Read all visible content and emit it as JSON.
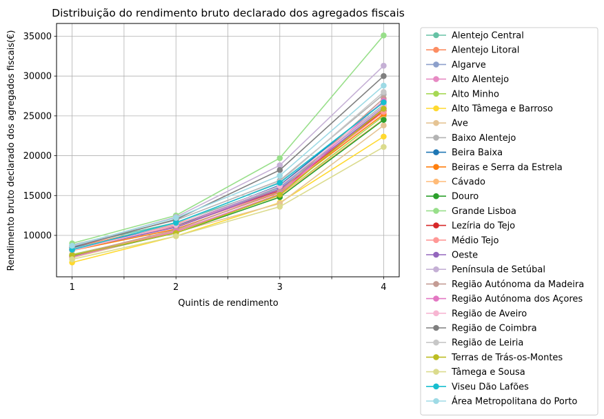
{
  "chart_data": {
    "type": "line",
    "title": "Distribuição do rendimento bruto declarado dos agregados fiscais",
    "xlabel": "Quintis de rendimento",
    "ylabel": "Rendimento bruto declarado dos agregados fiscais(€)",
    "x": [
      1,
      2,
      3,
      4
    ],
    "x_ticks": [
      "1",
      "2",
      "3",
      "4"
    ],
    "xlim": [
      0.85,
      4.15
    ],
    "ylim": [
      4800,
      36600
    ],
    "y_ticks": [
      10000,
      15000,
      20000,
      25000,
      30000,
      35000
    ],
    "grid": true,
    "legend_position": "outside-right",
    "series": [
      {
        "name": "Alentejo Central",
        "color": "#66c2a5",
        "values": [
          8700,
          11600,
          16100,
          26400
        ]
      },
      {
        "name": "Alentejo Litoral",
        "color": "#fc8d62",
        "values": [
          8500,
          11400,
          15800,
          25700
        ]
      },
      {
        "name": "Algarve",
        "color": "#8da0cb",
        "values": [
          8300,
          11200,
          16000,
          26200
        ]
      },
      {
        "name": "Alto Alentejo",
        "color": "#e78ac3",
        "values": [
          8200,
          11300,
          15700,
          26000
        ]
      },
      {
        "name": "Alto Minho",
        "color": "#a6d854",
        "values": [
          7600,
          10500,
          15000,
          25000
        ]
      },
      {
        "name": "Alto Tâmega e Barroso",
        "color": "#ffd92f",
        "values": [
          6600,
          9900,
          14100,
          22400
        ]
      },
      {
        "name": "Ave",
        "color": "#e5c494",
        "values": [
          7200,
          10400,
          14000,
          23800
        ]
      },
      {
        "name": "Baixo Alentejo",
        "color": "#b3b3b3",
        "values": [
          8800,
          11900,
          16900,
          27700
        ]
      },
      {
        "name": "Beira Baixa",
        "color": "#1f77b4",
        "values": [
          8400,
          11200,
          16300,
          26800
        ]
      },
      {
        "name": "Beiras e Serra da Estrela",
        "color": "#ff7f0e",
        "values": [
          8100,
          10800,
          15400,
          25200
        ]
      },
      {
        "name": "Cávado",
        "color": "#ffbb78",
        "values": [
          7400,
          10600,
          15000,
          24600
        ]
      },
      {
        "name": "Douro",
        "color": "#2ca02c",
        "values": [
          7400,
          10300,
          14800,
          24500
        ]
      },
      {
        "name": "Grande Lisboa",
        "color": "#98df8a",
        "values": [
          9000,
          12500,
          19700,
          35100
        ]
      },
      {
        "name": "Lezíria do Tejo",
        "color": "#d62728",
        "values": [
          8300,
          11100,
          15600,
          25600
        ]
      },
      {
        "name": "Médio Tejo",
        "color": "#ff9896",
        "values": [
          8300,
          11100,
          15500,
          25500
        ]
      },
      {
        "name": "Oeste",
        "color": "#9467bd",
        "values": [
          8200,
          11000,
          15800,
          25900
        ]
      },
      {
        "name": "Península de Setúbal",
        "color": "#c5b0d5",
        "values": [
          8600,
          12300,
          18800,
          31300
        ]
      },
      {
        "name": "Região Autónoma da Madeira",
        "color": "#c49c94",
        "values": [
          7500,
          10700,
          15500,
          27200
        ]
      },
      {
        "name": "Região Autónoma dos Açores",
        "color": "#e377c2",
        "values": [
          7300,
          10500,
          15200,
          26900
        ]
      },
      {
        "name": "Região de Aveiro",
        "color": "#f7b6d2",
        "values": [
          8100,
          11300,
          16200,
          26300
        ]
      },
      {
        "name": "Região de Coimbra",
        "color": "#7f7f7f",
        "values": [
          8500,
          12000,
          18200,
          30000
        ]
      },
      {
        "name": "Região de Leiria",
        "color": "#c7c7c7",
        "values": [
          8300,
          11500,
          16700,
          28000
        ]
      },
      {
        "name": "Terras de Trás-os-Montes",
        "color": "#bcbd22",
        "values": [
          7500,
          10300,
          15100,
          25900
        ]
      },
      {
        "name": "Tâmega e Sousa",
        "color": "#dbdb8d",
        "values": [
          7000,
          9900,
          13600,
          21100
        ]
      },
      {
        "name": "Viseu Dão Lafões",
        "color": "#17becf",
        "values": [
          8200,
          11600,
          16600,
          26700
        ]
      },
      {
        "name": "Área Metropolitana do Porto",
        "color": "#9edae5",
        "values": [
          8700,
          12200,
          17500,
          28800
        ]
      }
    ]
  }
}
